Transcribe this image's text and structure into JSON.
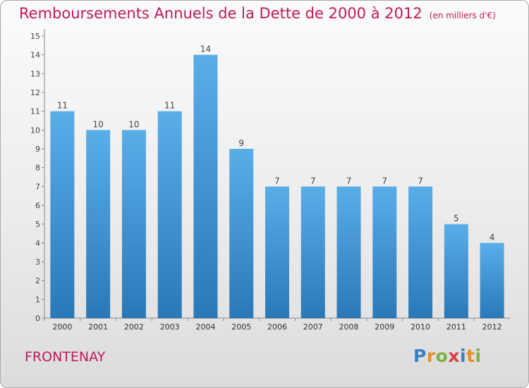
{
  "header": {
    "title": "Remboursements Annuels de la Dette de 2000 à 2012",
    "subtitle": "(en milliers d'€)"
  },
  "footer": {
    "town": "FRONTENAY",
    "logo": {
      "letters": [
        {
          "char": "P",
          "color": "#3b7fc4"
        },
        {
          "char": "r",
          "color": "#e8902a"
        },
        {
          "char": "o",
          "color": "#7cb342"
        },
        {
          "char": "x",
          "color": "#d64242"
        },
        {
          "char": "i",
          "color": "#3b7fc4"
        },
        {
          "char": "t",
          "color": "#e8902a"
        },
        {
          "char": "i",
          "color": "#7cb342"
        }
      ]
    }
  },
  "chart_data": {
    "type": "bar",
    "title": "Remboursements Annuels de la Dette de 2000 à 2012",
    "subtitle": "(en milliers d'€)",
    "xlabel": "",
    "ylabel": "",
    "categories": [
      "2000",
      "2001",
      "2002",
      "2003",
      "2004",
      "2005",
      "2006",
      "2007",
      "2008",
      "2009",
      "2010",
      "2011",
      "2012"
    ],
    "values": [
      11,
      10,
      10,
      11,
      14,
      9,
      7,
      7,
      7,
      7,
      7,
      5,
      4
    ],
    "ylim": [
      0,
      15
    ],
    "yticks": [
      0,
      1,
      2,
      3,
      4,
      5,
      6,
      7,
      8,
      9,
      10,
      11,
      12,
      13,
      14,
      15
    ],
    "grid": false,
    "legend": "none",
    "bar_color_top": "#5aaee8",
    "bar_color_bottom": "#2a78b8"
  }
}
